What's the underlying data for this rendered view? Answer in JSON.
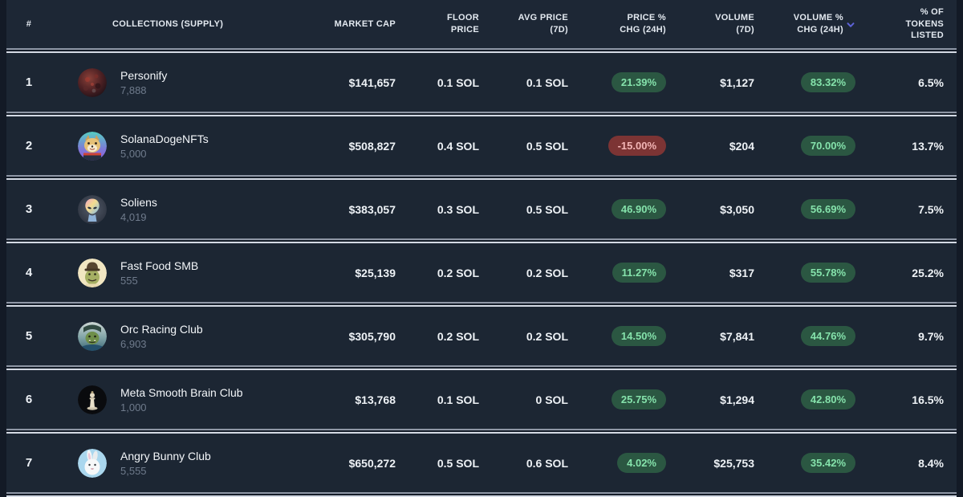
{
  "theme": {
    "page_bg": "#131a26",
    "header_bg": "#1d2735",
    "row_bg": "#1c2633",
    "badge_up_bg": "#2b5742",
    "badge_up_text": "#85e2ab",
    "badge_down_bg": "#7c3434",
    "badge_down_text": "#f2b5b5",
    "sort_icon": "#5d63d8",
    "separator_light": "#d4dae4",
    "separator_dim": "#8e96a5"
  },
  "table": {
    "columns": [
      {
        "key": "rank",
        "label": "#"
      },
      {
        "key": "collection",
        "label": "COLLECTIONS (SUPPLY)"
      },
      {
        "key": "market_cap",
        "label": "MARKET CAP"
      },
      {
        "key": "floor_price",
        "label": "FLOOR\nPRICE"
      },
      {
        "key": "avg_price_7d",
        "label": "AVG PRICE\n(7D)"
      },
      {
        "key": "price_chg_24h",
        "label": "PRICE %\nCHG (24H)"
      },
      {
        "key": "volume_7d",
        "label": "VOLUME\n(7D)"
      },
      {
        "key": "volume_chg_24h",
        "label": "VOLUME %\nCHG (24H)",
        "sort_icon": "chevron-down-icon"
      },
      {
        "key": "tokens_listed_pct",
        "label": "% OF\nTOKENS\nLISTED"
      }
    ],
    "sort_indicator": {
      "column_key": "volume_chg_24h",
      "icon": "chevron-down-icon"
    },
    "rows": [
      {
        "rank": "1",
        "name": "Personify",
        "supply": "7,888",
        "market_cap": "$141,657",
        "floor_price": "0.1 SOL",
        "avg_price_7d": "0.1 SOL",
        "price_chg_24h": "21.39%",
        "volume_7d": "$1,127",
        "volume_chg_24h": "83.32%",
        "tokens_listed_pct": "6.5%",
        "avatar": "personify"
      },
      {
        "rank": "2",
        "name": "SolanaDogeNFTs",
        "supply": "5,000",
        "market_cap": "$508,827",
        "floor_price": "0.4 SOL",
        "avg_price_7d": "0.5 SOL",
        "price_chg_24h": "-15.00%",
        "volume_7d": "$204",
        "volume_chg_24h": "70.00%",
        "tokens_listed_pct": "13.7%",
        "avatar": "solanadoge"
      },
      {
        "rank": "3",
        "name": "Soliens",
        "supply": "4,019",
        "market_cap": "$383,057",
        "floor_price": "0.3 SOL",
        "avg_price_7d": "0.5 SOL",
        "price_chg_24h": "46.90%",
        "volume_7d": "$3,050",
        "volume_chg_24h": "56.69%",
        "tokens_listed_pct": "7.5%",
        "avatar": "soliens"
      },
      {
        "rank": "4",
        "name": "Fast Food SMB",
        "supply": "555",
        "market_cap": "$25,139",
        "floor_price": "0.2 SOL",
        "avg_price_7d": "0.2 SOL",
        "price_chg_24h": "11.27%",
        "volume_7d": "$317",
        "volume_chg_24h": "55.78%",
        "tokens_listed_pct": "25.2%",
        "avatar": "fastfood"
      },
      {
        "rank": "5",
        "name": "Orc Racing Club",
        "supply": "6,903",
        "market_cap": "$305,790",
        "floor_price": "0.2 SOL",
        "avg_price_7d": "0.2 SOL",
        "price_chg_24h": "14.50%",
        "volume_7d": "$7,841",
        "volume_chg_24h": "44.76%",
        "tokens_listed_pct": "9.7%",
        "avatar": "orc"
      },
      {
        "rank": "6",
        "name": "Meta Smooth Brain Club",
        "supply": "1,000",
        "market_cap": "$13,768",
        "floor_price": "0.1 SOL",
        "avg_price_7d": "0 SOL",
        "price_chg_24h": "25.75%",
        "volume_7d": "$1,294",
        "volume_chg_24h": "42.80%",
        "tokens_listed_pct": "16.5%",
        "avatar": "metasmooth"
      },
      {
        "rank": "7",
        "name": "Angry Bunny Club",
        "supply": "5,555",
        "market_cap": "$650,272",
        "floor_price": "0.5 SOL",
        "avg_price_7d": "0.6 SOL",
        "price_chg_24h": "4.02%",
        "volume_7d": "$25,753",
        "volume_chg_24h": "35.42%",
        "tokens_listed_pct": "8.4%",
        "avatar": "angrybunny"
      }
    ]
  }
}
